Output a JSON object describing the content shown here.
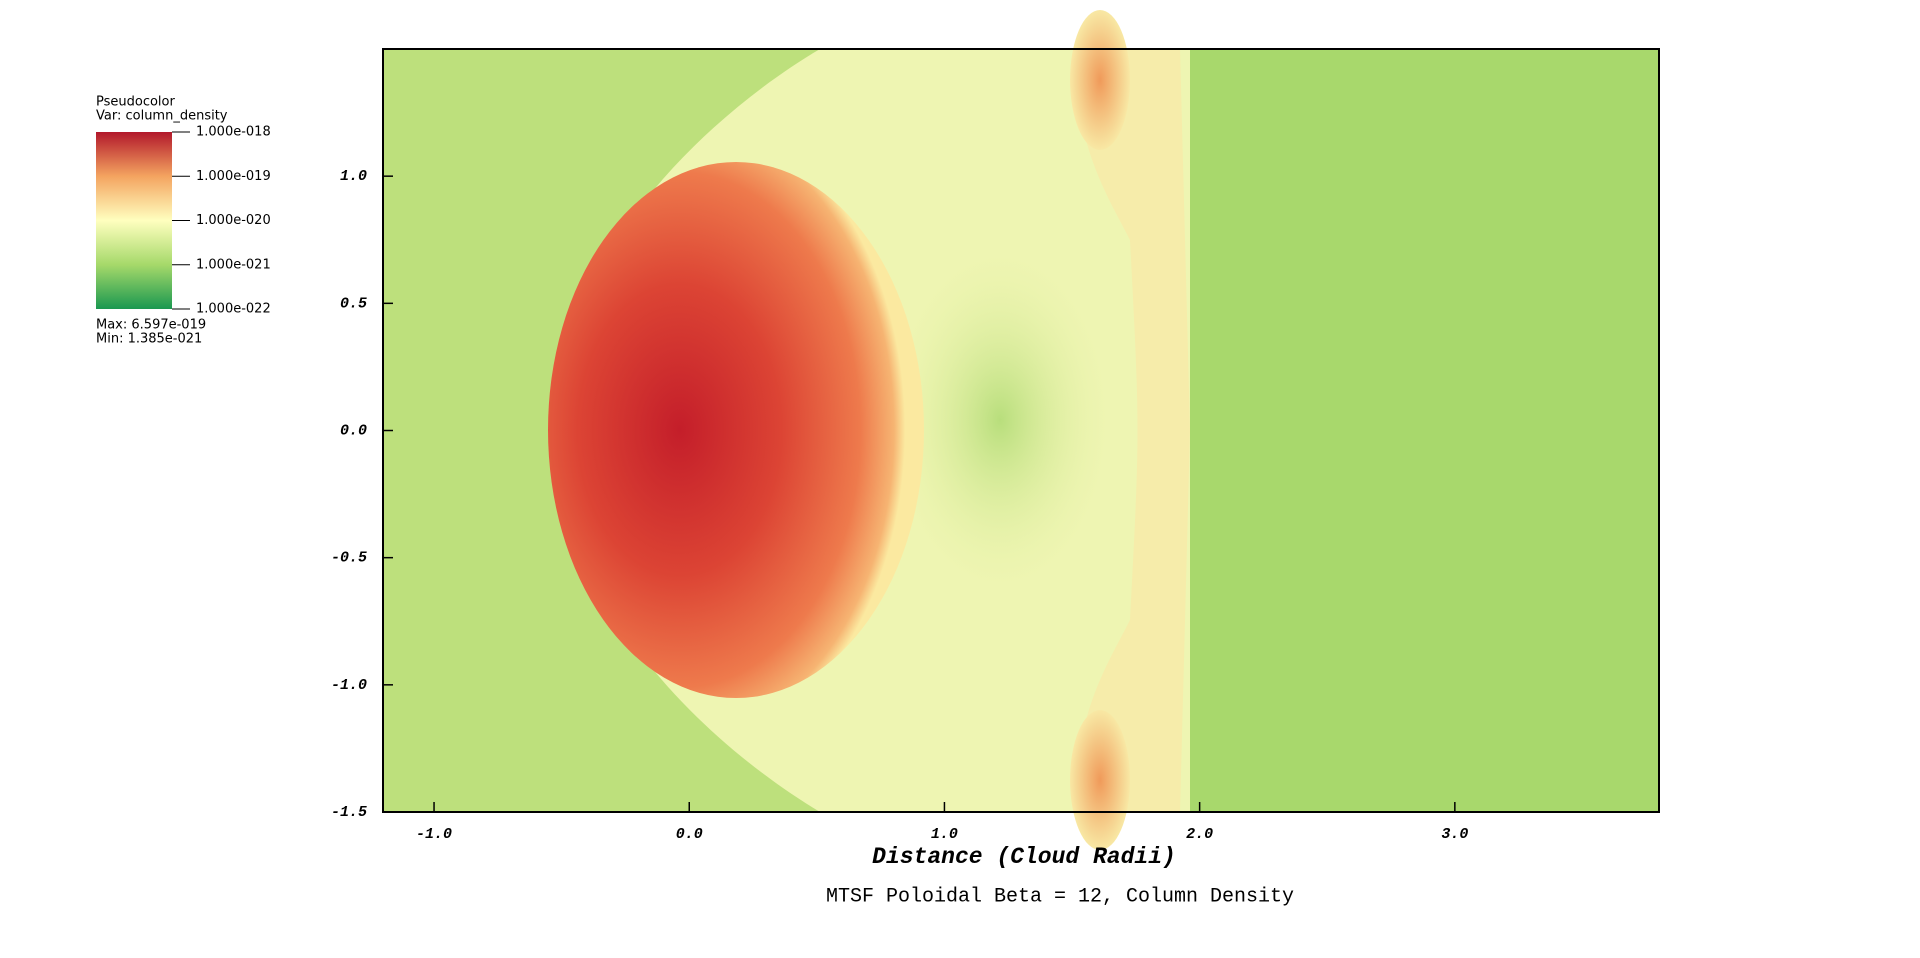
{
  "chart_data": {
    "type": "pseudocolor",
    "title": "MTSF Poloidal Beta = 12, Column Density",
    "xlabel": "Distance (Cloud Radii)",
    "xlim": [
      -1.2,
      3.8
    ],
    "xticks": [
      {
        "value": -1,
        "label": "-1.0"
      },
      {
        "value": 0,
        "label": "0.0"
      },
      {
        "value": 1,
        "label": "1.0"
      },
      {
        "value": 2,
        "label": "2.0"
      },
      {
        "value": 3,
        "label": "3.0"
      }
    ],
    "ylim": [
      -1.5,
      1.5
    ],
    "yticks": [
      -1.5,
      {
        "value": -1,
        "label": "-1.0"
      },
      -0.5,
      {
        "value": 0,
        "label": "0.0"
      },
      0.5,
      {
        "value": 1,
        "label": "1.0"
      }
    ],
    "colorbar": {
      "title": "Pseudocolor",
      "variable": "Var: column_density",
      "log": true,
      "lim": [
        1e-22,
        1e-18
      ],
      "ticks": [
        {
          "value": 1e-18,
          "label": "1.000e-018"
        },
        {
          "value": 1e-19,
          "label": "1.000e-019"
        },
        {
          "value": 1e-20,
          "label": "1.000e-020"
        },
        {
          "value": 1e-21,
          "label": "1.000e-021"
        },
        {
          "value": 1e-22,
          "label": "1.000e-022"
        }
      ],
      "colors": [
        "#1a9850",
        "#a6d96a",
        "#ffffbf",
        "#f4a460",
        "#b2182b"
      ],
      "max": "Max:  6.597e-019",
      "min": "Min:  1.385e-021"
    }
  }
}
